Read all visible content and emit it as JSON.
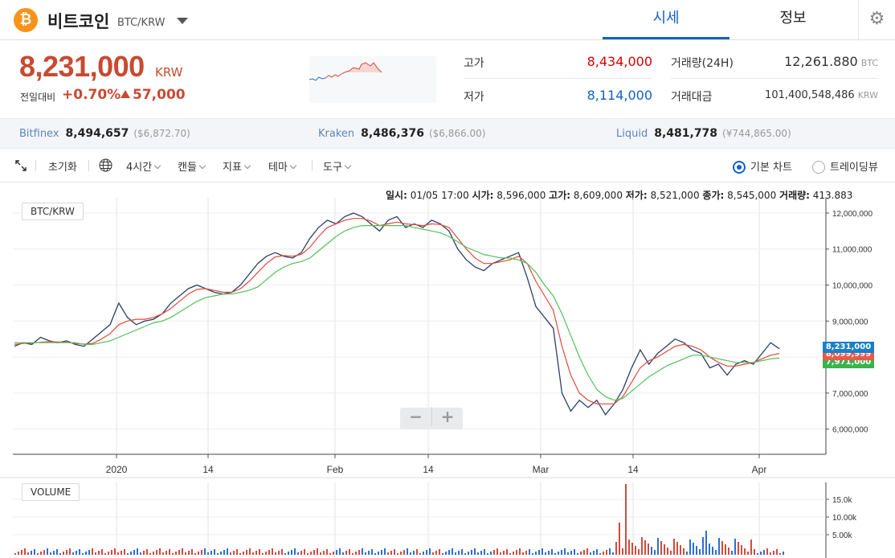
{
  "coin": {
    "logo": "₿",
    "name": "비트코인",
    "pair": "BTC/KRW"
  },
  "tabs": [
    {
      "label": "시세",
      "active": true
    },
    {
      "label": "정보",
      "active": false
    }
  ],
  "settings_icon": "gear-icon",
  "price": {
    "current": "8,231,000",
    "unit": "KRW",
    "change_label": "전일대비",
    "change_pct": "+0.70%",
    "change_amt": "57,000",
    "colors": {
      "up": "#c84a31",
      "down": "#1261c4"
    }
  },
  "stats": {
    "high": {
      "label": "고가",
      "value": "8,434,000"
    },
    "low": {
      "label": "저가",
      "value": "8,114,000"
    },
    "volume": {
      "label": "거래량(24H)",
      "value": "12,261.880",
      "unit": "BTC"
    },
    "amount": {
      "label": "거래대금",
      "value": "101,400,548,486",
      "unit": "KRW"
    }
  },
  "exchanges": [
    {
      "name": "Bitfinex",
      "value": "8,494,657",
      "sub": "($6,872.70)"
    },
    {
      "name": "Kraken",
      "value": "8,486,376",
      "sub": "($6,866.00)"
    },
    {
      "name": "Liquid",
      "value": "8,481,778",
      "sub": "(¥744,865.00)"
    }
  ],
  "toolbar": {
    "expand_icon": "expand-icon",
    "reset": "초기화",
    "globe_icon": "globe-icon",
    "interval": "4시간",
    "candle": "캔들",
    "indicator": "지표",
    "theme": "테마",
    "tools": "도구",
    "chart_basic": "기본 차트",
    "chart_trading": "트레이딩뷰"
  },
  "ohlc": {
    "date_label": "일시:",
    "date": "01/05 17:00",
    "open_label": "시가:",
    "open": "8,596,000",
    "high_label": "고가:",
    "high": "8,609,000",
    "low_label": "저가:",
    "low": "8,521,000",
    "close_label": "종가:",
    "close": "8,545,000",
    "vol_label": "거래량:",
    "vol": "413.883"
  },
  "chart_labels": {
    "pair": "BTC/KRW",
    "volume": "VOLUME",
    "zoom_out": "−",
    "zoom_in": "+"
  },
  "price_tags": {
    "current": "8,231,000",
    "ma1": "8,099,999",
    "ma2": "7,971,000"
  },
  "chart_data": {
    "type": "line",
    "title": "",
    "x_ticks": [
      "2020",
      "14",
      "Feb",
      "14",
      "Mar",
      "14",
      "Apr"
    ],
    "y_ticks": [
      "12,000,000",
      "11,000,000",
      "10,000,000",
      "9,000,000",
      "8,000,000",
      "7,000,000",
      "6,000,000"
    ],
    "ylim": [
      5300000,
      12200000
    ],
    "volume_ticks": [
      "15.0k",
      "10.00k",
      "5.00k"
    ],
    "series": [
      {
        "values": [
          8300000,
          8400000,
          8350000,
          8550000,
          8450000,
          8400000,
          8450000,
          8350000,
          8300000,
          8500000,
          8700000,
          8900000,
          9500000,
          9100000,
          8900000,
          9000000,
          9050000,
          9200000,
          9500000,
          9700000,
          9900000,
          10000000,
          9900000,
          9800000,
          9750000,
          9800000,
          10000000,
          10300000,
          10600000,
          10800000,
          10900000,
          10800000,
          10750000,
          10900000,
          11300000,
          11600000,
          11800000,
          11700000,
          11900000,
          12000000,
          11900000,
          11700000,
          11500000,
          11800000,
          11900000,
          11600000,
          11700000,
          11600000,
          11800000,
          11700000,
          11500000,
          11000000,
          10700000,
          10500000,
          10400000,
          10600000,
          10700000,
          10800000,
          10900000,
          10200000,
          9400000,
          9100000,
          8800000,
          7000000,
          6500000,
          6800000,
          6600000,
          6800000,
          6400000,
          6700000,
          7100000,
          7700000,
          8200000,
          7800000,
          8100000,
          8300000,
          8500000,
          8400000,
          8200000,
          8100000,
          7700000,
          7800000,
          7500000,
          7800000,
          7900000,
          7800000,
          8100000,
          8400000,
          8231000
        ]
      },
      {
        "values": [
          8350000,
          8380000,
          8390000,
          8410000,
          8430000,
          8420000,
          8410000,
          8380000,
          8360000,
          8380000,
          8500000,
          8650000,
          8900000,
          9000000,
          9050000,
          9050000,
          9100000,
          9200000,
          9350000,
          9550000,
          9750000,
          9880000,
          9900000,
          9850000,
          9800000,
          9800000,
          9900000,
          10100000,
          10350000,
          10600000,
          10780000,
          10820000,
          10800000,
          10850000,
          11050000,
          11350000,
          11600000,
          11700000,
          11800000,
          11850000,
          11850000,
          11780000,
          11650000,
          11700000,
          11750000,
          11700000,
          11680000,
          11650000,
          11700000,
          11680000,
          11600000,
          11300000,
          11000000,
          10750000,
          10600000,
          10600000,
          10650000,
          10700000,
          10800000,
          10600000,
          10100000,
          9700000,
          9300000,
          8300000,
          7500000,
          7000000,
          6800000,
          6700000,
          6700000,
          6700000,
          6900000,
          7300000,
          7700000,
          7900000,
          8000000,
          8150000,
          8300000,
          8350000,
          8300000,
          8200000,
          8000000,
          7850000,
          7750000,
          7750000,
          7800000,
          7850000,
          7950000,
          8050000,
          8099999
        ]
      },
      {
        "values": [
          8400000,
          8400000,
          8400000,
          8400000,
          8400000,
          8400000,
          8400000,
          8400000,
          8350000,
          8350000,
          8400000,
          8450000,
          8550000,
          8650000,
          8750000,
          8850000,
          8950000,
          9000000,
          9100000,
          9250000,
          9400000,
          9550000,
          9650000,
          9700000,
          9750000,
          9750000,
          9800000,
          9850000,
          9950000,
          10150000,
          10350000,
          10500000,
          10600000,
          10650000,
          10750000,
          10950000,
          11150000,
          11350000,
          11500000,
          11600000,
          11650000,
          11650000,
          11650000,
          11650000,
          11650000,
          11650000,
          11600000,
          11550000,
          11500000,
          11450000,
          11350000,
          11200000,
          11050000,
          10950000,
          10850000,
          10800000,
          10750000,
          10750000,
          10700000,
          10600000,
          10350000,
          10000000,
          9700000,
          9200000,
          8600000,
          8000000,
          7500000,
          7100000,
          6900000,
          6800000,
          6850000,
          7050000,
          7250000,
          7450000,
          7600000,
          7750000,
          7850000,
          7950000,
          8050000,
          8050000,
          8000000,
          7950000,
          7900000,
          7850000,
          7850000,
          7850000,
          7900000,
          7950000,
          7971000
        ]
      }
    ]
  }
}
